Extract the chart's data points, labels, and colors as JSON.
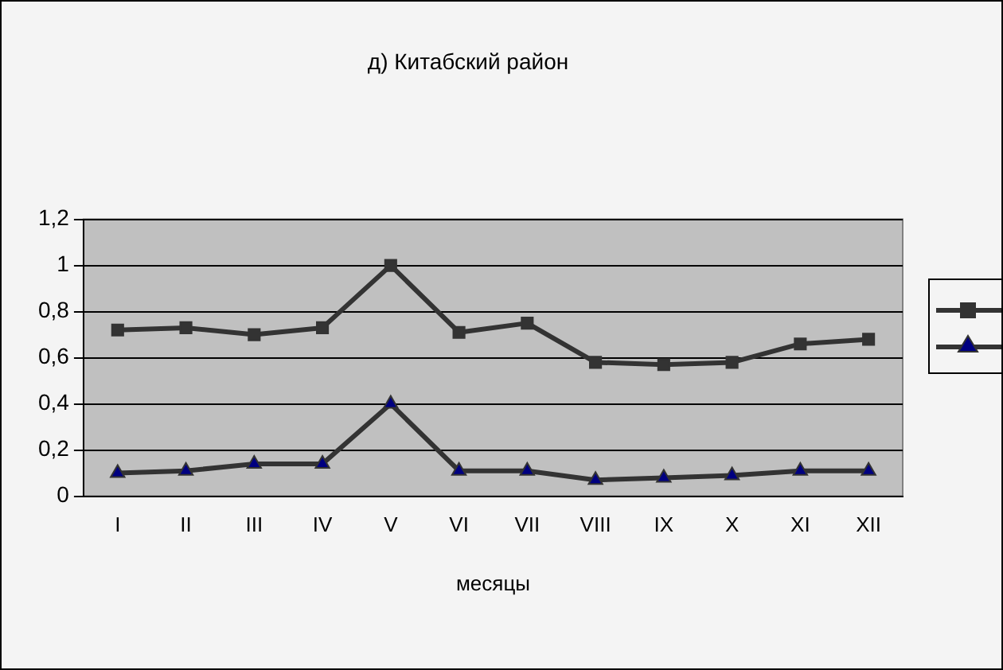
{
  "chart_data": {
    "type": "line",
    "title": "д) Китабский район",
    "xlabel": "месяцы",
    "categories": [
      "I",
      "II",
      "III",
      "IV",
      "V",
      "VI",
      "VII",
      "VIII",
      "IX",
      "X",
      "XI",
      "XII"
    ],
    "series": [
      {
        "color": "#333333",
        "marker": "square",
        "values": [
          0.72,
          0.73,
          0.7,
          0.73,
          1.0,
          0.71,
          0.75,
          0.58,
          0.57,
          0.58,
          0.66,
          0.68
        ]
      },
      {
        "color": "#000080",
        "marker": "triangle",
        "values": [
          0.1,
          0.11,
          0.14,
          0.14,
          0.4,
          0.11,
          0.11,
          0.07,
          0.08,
          0.09,
          0.11,
          0.11
        ]
      }
    ],
    "ylim": [
      0,
      1.2
    ],
    "yticks": [
      0,
      {
        "value": 0.2,
        "label": "0,2"
      },
      {
        "value": 0.4,
        "label": "0,4"
      },
      {
        "value": 0.6,
        "label": "0,6"
      },
      {
        "value": 0.8,
        "label": "0,8"
      },
      1,
      {
        "value": 1.2,
        "label": "1,2"
      }
    ],
    "grid": "y",
    "line_style": "solid"
  }
}
